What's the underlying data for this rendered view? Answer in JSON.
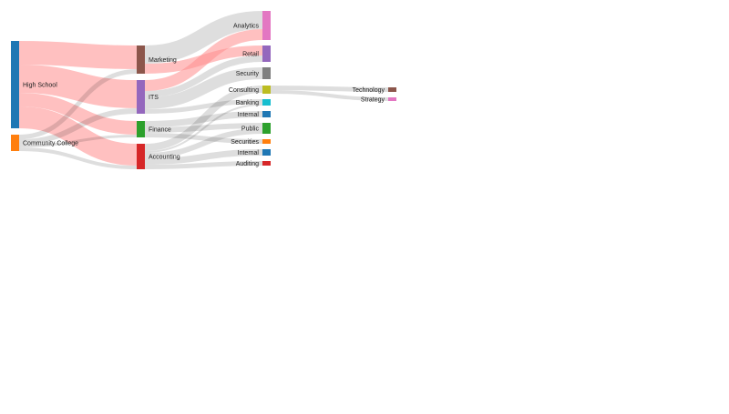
{
  "nodes": [
    {
      "id": "hs",
      "label": "High School",
      "color": "#1f77b4"
    },
    {
      "id": "cc",
      "label": "Community College",
      "color": "#ff7f0e"
    },
    {
      "id": "mkt",
      "label": "Marketing",
      "color": "#8c564b"
    },
    {
      "id": "its",
      "label": "ITS",
      "color": "#9467bd"
    },
    {
      "id": "fin",
      "label": "Finance",
      "color": "#2ca02c"
    },
    {
      "id": "acc",
      "label": "Accounting",
      "color": "#d62728"
    },
    {
      "id": "ana",
      "label": "Analytics",
      "color": "#e377c2"
    },
    {
      "id": "ret",
      "label": "Retail",
      "color": "#9467bd"
    },
    {
      "id": "sec",
      "label": "Security",
      "color": "#7f7f7f"
    },
    {
      "id": "con",
      "label": "Consulting",
      "color": "#bcbd22"
    },
    {
      "id": "ban",
      "label": "Banking",
      "color": "#17becf"
    },
    {
      "id": "int1",
      "label": "Internal",
      "color": "#1f77b4"
    },
    {
      "id": "pub",
      "label": "Public",
      "color": "#2ca02c"
    },
    {
      "id": "secu",
      "label": "Securities",
      "color": "#ff7f0e"
    },
    {
      "id": "int2",
      "label": "Internal",
      "color": "#1f77b4"
    },
    {
      "id": "aud",
      "label": "Auditing",
      "color": "#d62728"
    },
    {
      "id": "tech",
      "label": "Technology",
      "color": "#8c564b"
    },
    {
      "id": "str",
      "label": "Strategy",
      "color": "#e377c2"
    }
  ],
  "links": [
    {
      "source": "hs",
      "target": "mkt",
      "value": 26,
      "highlight": true
    },
    {
      "source": "hs",
      "target": "its",
      "value": 31,
      "highlight": true
    },
    {
      "source": "hs",
      "target": "fin",
      "value": 15,
      "highlight": true
    },
    {
      "source": "hs",
      "target": "acc",
      "value": 24,
      "highlight": true
    },
    {
      "source": "cc",
      "target": "mkt",
      "value": 5
    },
    {
      "source": "cc",
      "target": "its",
      "value": 6
    },
    {
      "source": "cc",
      "target": "fin",
      "value": 3
    },
    {
      "source": "cc",
      "target": "acc",
      "value": 4
    },
    {
      "source": "mkt",
      "target": "ana",
      "value": 20
    },
    {
      "source": "mkt",
      "target": "ret",
      "value": 11,
      "highlight": true
    },
    {
      "source": "its",
      "target": "ana",
      "value": 12,
      "highlight": true
    },
    {
      "source": "its",
      "target": "ret",
      "value": 7
    },
    {
      "source": "its",
      "target": "sec",
      "value": 13
    },
    {
      "source": "its",
      "target": "ban",
      "value": 5
    },
    {
      "source": "fin",
      "target": "int1",
      "value": 7
    },
    {
      "source": "fin",
      "target": "pub",
      "value": 6
    },
    {
      "source": "fin",
      "target": "secu",
      "value": 5
    },
    {
      "source": "acc",
      "target": "con",
      "value": 8
    },
    {
      "source": "acc",
      "target": "ban",
      "value": 2
    },
    {
      "source": "acc",
      "target": "pub",
      "value": 6
    },
    {
      "source": "acc",
      "target": "int2",
      "value": 7
    },
    {
      "source": "acc",
      "target": "aud",
      "value": 5
    },
    {
      "source": "con",
      "target": "tech",
      "value": 5
    },
    {
      "source": "con",
      "target": "str",
      "value": 4
    }
  ],
  "link_colors": {
    "default": "rgba(0,0,0,0.13)",
    "highlight": "rgba(255,140,140,0.55)"
  }
}
